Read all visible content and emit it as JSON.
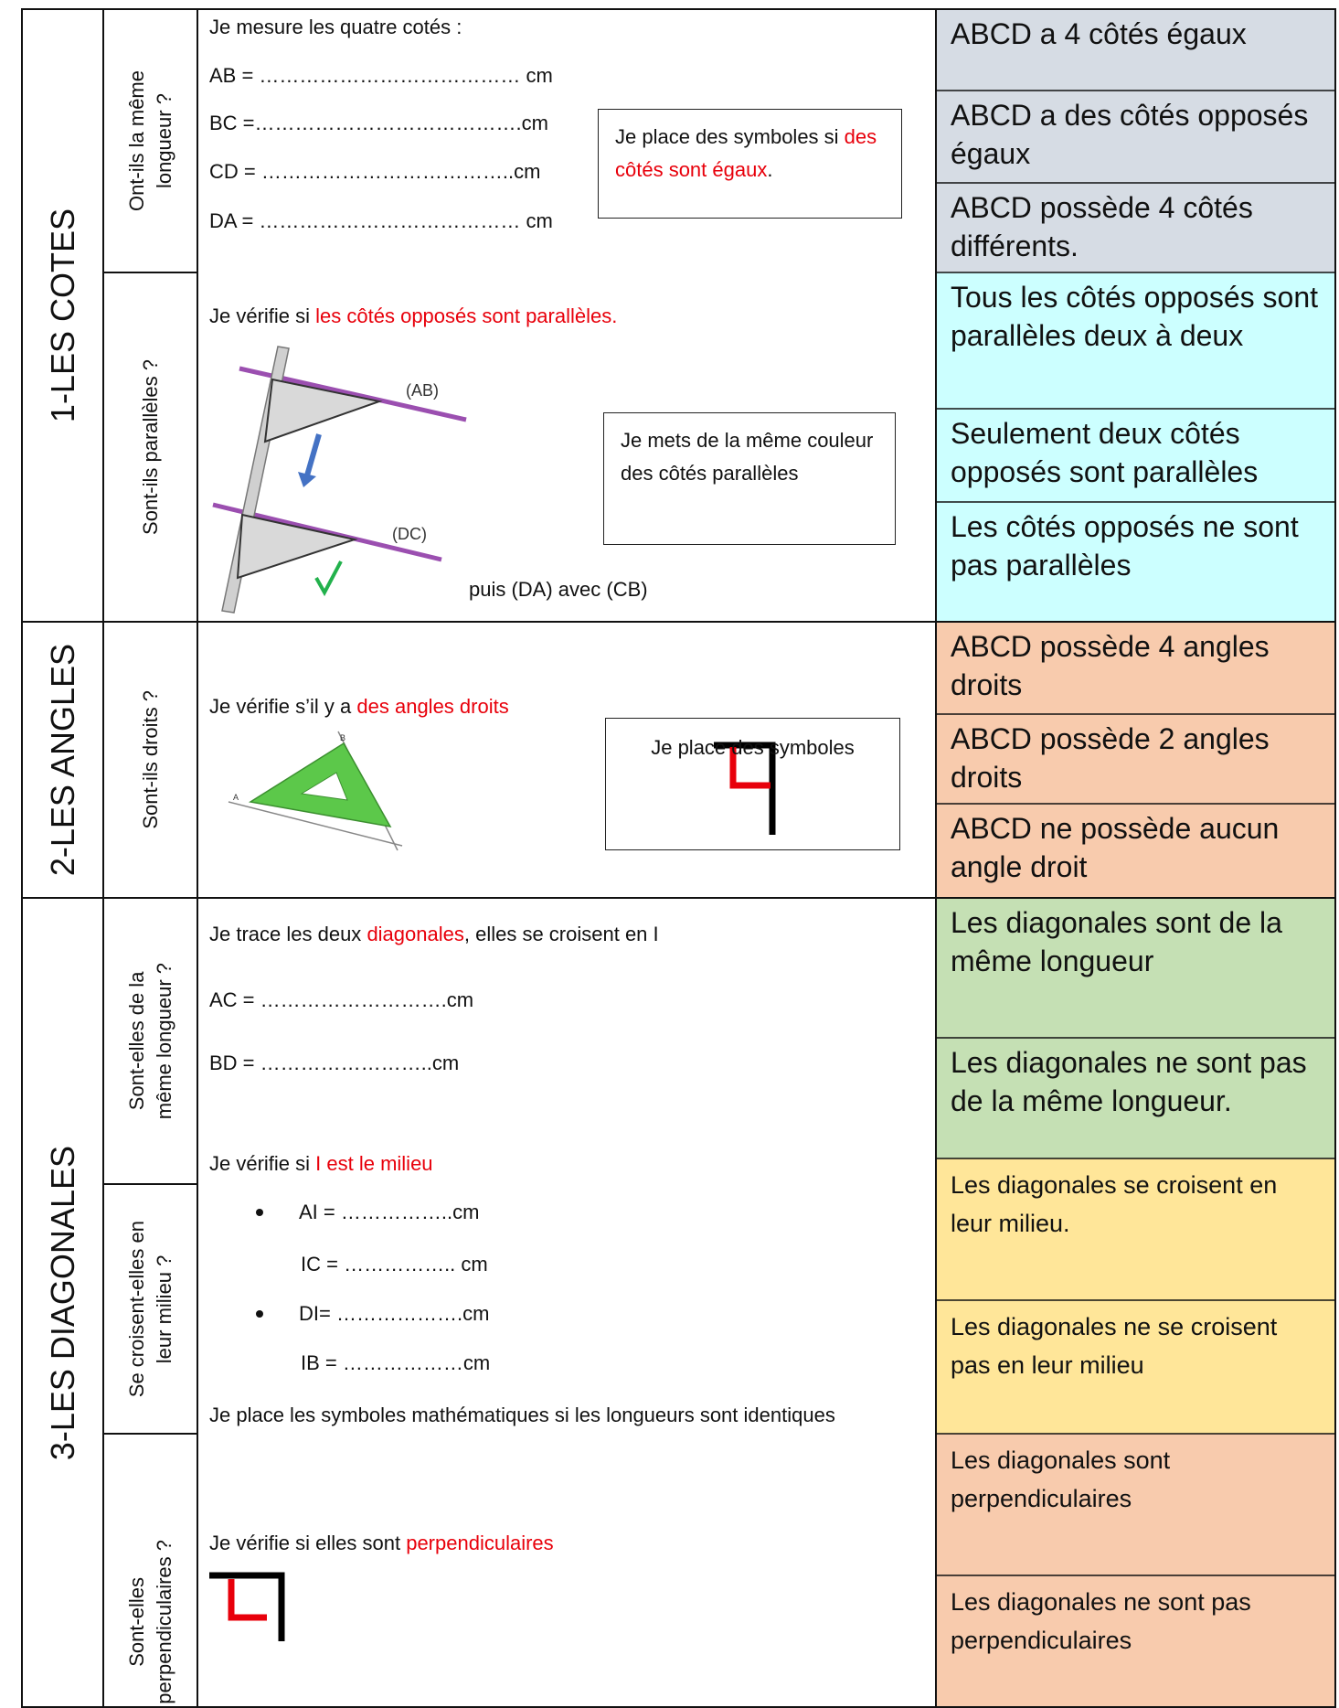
{
  "sides": {
    "title": "1-LES COTES",
    "length": {
      "question": [
        "Ont-ils la même",
        "longueur ?"
      ],
      "intro": "Je mesure les quatre cotés :",
      "measures": [
        "AB = ………………………………… cm",
        "BC =………………………………….cm",
        "CD = ………………………………..cm",
        "DA = ………………………………… cm"
      ],
      "box": {
        "text": "Je place des symboles si ",
        "highlight": "des côtés sont égaux",
        "end": "."
      }
    },
    "parallel": {
      "question": [
        "Sont-ils parallèles ?"
      ],
      "intro": {
        "text": "Je vérifie si ",
        "highlight": "les côtés opposés sont parallèles."
      },
      "figure_labels": [
        "(AB)",
        "(DC)"
      ],
      "box": "Je mets de la même couleur des côtés parallèles",
      "note": "puis (DA) avec (CB)"
    },
    "options": [
      "ABCD a 4 côtés égaux",
      "ABCD a des côtés opposés égaux",
      "ABCD possède 4 côtés différents.",
      "Tous les côtés opposés sont parallèles deux à deux",
      "Seulement deux côtés opposés sont parallèles",
      "Les côtés opposés ne sont pas parallèles"
    ]
  },
  "angles": {
    "title": "2-LES ANGLES",
    "question": [
      "Sont-ils droits ?"
    ],
    "intro": {
      "text": "Je vérifie s’il y a ",
      "highlight": "des angles droits"
    },
    "figure_labels": [
      "A",
      "B"
    ],
    "box": "Je place des symboles",
    "options": [
      "ABCD possède 4 angles droits",
      "ABCD possède 2 angles droits",
      "ABCD ne possède aucun angle droit"
    ]
  },
  "diagonals": {
    "title": "3-LES DIAGONALES",
    "questions": [
      [
        "Sont-elles de la",
        "même longueur ?"
      ],
      [
        "Se croisent-elles en",
        "leur milieu ?"
      ],
      [
        "Sont-elles",
        "perpendiculaires ?"
      ]
    ],
    "intro": {
      "text": "Je trace les deux ",
      "highlight": "diagonales",
      "end": ", elles se croisent en I"
    },
    "measures": [
      "AC = ……………………….cm",
      "BD = ……………………..cm"
    ],
    "middle": {
      "text": "Je vérifie si ",
      "highlight": "I est le milieu"
    },
    "halves": [
      "AI = ……………..cm",
      "IC = …………….. cm",
      "DI= ……………….cm",
      "IB = ………………cm"
    ],
    "symbols": "Je place les symboles mathématiques si les longueurs sont identiques",
    "perpendicular": {
      "text": "Je vérifie si elles sont ",
      "highlight": "perpendiculaires"
    },
    "options": [
      "Les diagonales sont de la même longueur",
      "Les diagonales ne sont pas de la même longueur.",
      "Les diagonales se croisent en leur milieu.",
      "Les diagonales ne se croisent pas en leur milieu",
      "Les diagonales sont perpendiculaires",
      "Les diagonales ne sont pas perpendiculaires"
    ]
  }
}
